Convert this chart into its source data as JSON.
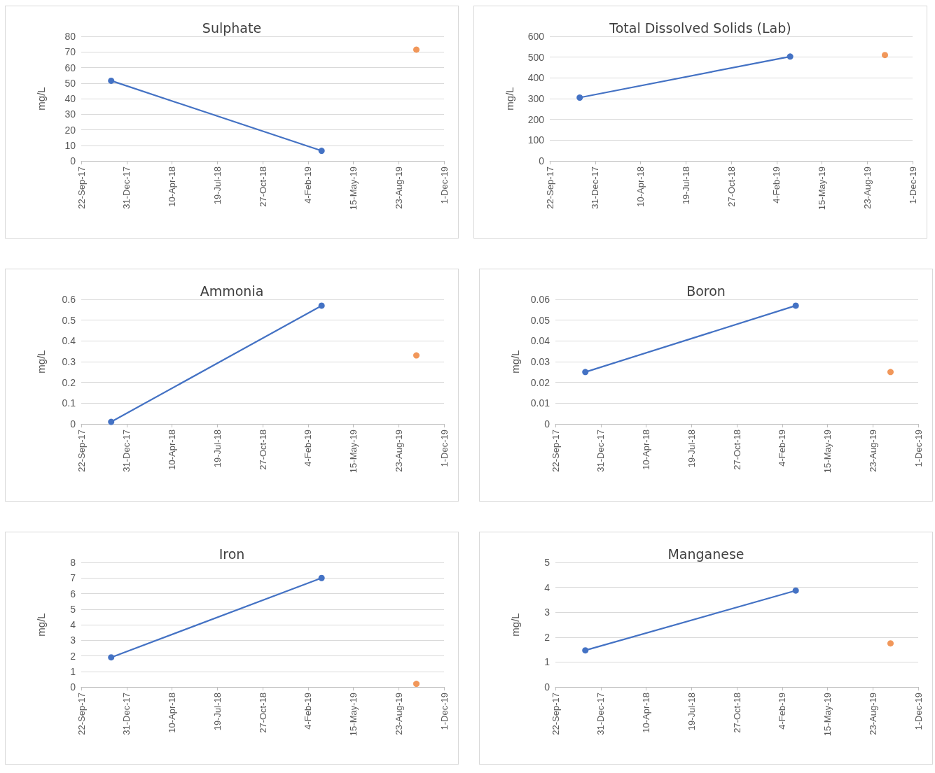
{
  "chart_data": [
    {
      "type": "line",
      "title": "Sulphate",
      "ylabel": "mg/L",
      "x": [
        "2017-11-27",
        "2019-03-06"
      ],
      "series": [
        {
          "type": "line",
          "color": "#4472c4",
          "values": [
            51.5,
            6.5
          ]
        },
        {
          "type": "scatter",
          "color": "#ed7d31",
          "x": [
            "2019-10-01"
          ],
          "values": [
            71.5
          ]
        }
      ],
      "xlim": [
        "2017-09-22",
        "2019-12-01"
      ],
      "xticks": [
        {
          "value": "2017-09-22",
          "label": "22-Sep-17"
        },
        {
          "value": "2017-12-31",
          "label": "31-Dec-17"
        },
        {
          "value": "2018-04-10",
          "label": "10-Apr-18"
        },
        {
          "value": "2018-07-19",
          "label": "19-Jul-18"
        },
        {
          "value": "2018-10-27",
          "label": "27-Oct-18"
        },
        {
          "value": "2019-02-04",
          "label": "4-Feb-19"
        },
        {
          "value": "2019-05-15",
          "label": "15-May-19"
        },
        {
          "value": "2019-08-23",
          "label": "23-Aug-19"
        },
        {
          "value": "2019-12-01",
          "label": "1-Dec-19"
        }
      ],
      "ylim": [
        0,
        80
      ],
      "yticks": [
        0,
        10,
        20,
        30,
        40,
        50,
        60,
        70,
        80
      ],
      "grid": "y",
      "marker": "circle",
      "line_style": "solid"
    },
    {
      "type": "line",
      "title": "Total Dissolved Solids (Lab)",
      "ylabel": "mg/L",
      "x": [
        "2017-11-27",
        "2019-03-06"
      ],
      "series": [
        {
          "type": "line",
          "color": "#4472c4",
          "values": [
            305,
            503
          ]
        },
        {
          "type": "scatter",
          "color": "#ed7d31",
          "x": [
            "2019-10-01"
          ],
          "values": [
            510
          ]
        }
      ],
      "xlim": [
        "2017-09-22",
        "2019-12-01"
      ],
      "xticks": [
        {
          "value": "2017-09-22",
          "label": "22-Sep-17"
        },
        {
          "value": "2017-12-31",
          "label": "31-Dec-17"
        },
        {
          "value": "2018-04-10",
          "label": "10-Apr-18"
        },
        {
          "value": "2018-07-19",
          "label": "19-Jul-18"
        },
        {
          "value": "2018-10-27",
          "label": "27-Oct-18"
        },
        {
          "value": "2019-02-04",
          "label": "4-Feb-19"
        },
        {
          "value": "2019-05-15",
          "label": "15-May-19"
        },
        {
          "value": "2019-08-23",
          "label": "23-Aug-19"
        },
        {
          "value": "2019-12-01",
          "label": "1-Dec-19"
        }
      ],
      "ylim": [
        0,
        600
      ],
      "yticks": [
        0,
        100,
        200,
        300,
        400,
        500,
        600
      ],
      "grid": "y",
      "marker": "circle",
      "line_style": "solid"
    },
    {
      "type": "line",
      "title": "Ammonia",
      "ylabel": "mg/L",
      "x": [
        "2017-11-27",
        "2019-03-06"
      ],
      "series": [
        {
          "type": "line",
          "color": "#4472c4",
          "values": [
            0.01,
            0.57
          ]
        },
        {
          "type": "scatter",
          "color": "#ed7d31",
          "x": [
            "2019-10-01"
          ],
          "values": [
            0.33
          ]
        }
      ],
      "xlim": [
        "2017-09-22",
        "2019-12-01"
      ],
      "xticks": [
        {
          "value": "2017-09-22",
          "label": "22-Sep-17"
        },
        {
          "value": "2017-12-31",
          "label": "31-Dec-17"
        },
        {
          "value": "2018-04-10",
          "label": "10-Apr-18"
        },
        {
          "value": "2018-07-19",
          "label": "19-Jul-18"
        },
        {
          "value": "2018-10-27",
          "label": "27-Oct-18"
        },
        {
          "value": "2019-02-04",
          "label": "4-Feb-19"
        },
        {
          "value": "2019-05-15",
          "label": "15-May-19"
        },
        {
          "value": "2019-08-23",
          "label": "23-Aug-19"
        },
        {
          "value": "2019-12-01",
          "label": "1-Dec-19"
        }
      ],
      "ylim": [
        0,
        0.6
      ],
      "yticks": [
        0,
        0.1,
        0.2,
        0.3,
        0.4,
        0.5,
        0.6
      ],
      "grid": "y",
      "marker": "circle",
      "line_style": "solid"
    },
    {
      "type": "line",
      "title": "Boron",
      "ylabel": "mg/L",
      "x": [
        "2017-11-27",
        "2019-03-06"
      ],
      "series": [
        {
          "type": "line",
          "color": "#4472c4",
          "values": [
            0.025,
            0.057
          ]
        },
        {
          "type": "scatter",
          "color": "#ed7d31",
          "x": [
            "2019-10-01"
          ],
          "values": [
            0.025
          ]
        }
      ],
      "xlim": [
        "2017-09-22",
        "2019-12-01"
      ],
      "xticks": [
        {
          "value": "2017-09-22",
          "label": "22-Sep-17"
        },
        {
          "value": "2017-12-31",
          "label": "31-Dec-17"
        },
        {
          "value": "2018-04-10",
          "label": "10-Apr-18"
        },
        {
          "value": "2018-07-19",
          "label": "19-Jul-18"
        },
        {
          "value": "2018-10-27",
          "label": "27-Oct-18"
        },
        {
          "value": "2019-02-04",
          "label": "4-Feb-19"
        },
        {
          "value": "2019-05-15",
          "label": "15-May-19"
        },
        {
          "value": "2019-08-23",
          "label": "23-Aug-19"
        },
        {
          "value": "2019-12-01",
          "label": "1-Dec-19"
        }
      ],
      "ylim": [
        0,
        0.06
      ],
      "yticks": [
        0,
        0.01,
        0.02,
        0.03,
        0.04,
        0.05,
        0.06
      ],
      "grid": "y",
      "marker": "circle",
      "line_style": "solid"
    },
    {
      "type": "line",
      "title": "Iron",
      "ylabel": "mg/L",
      "x": [
        "2017-11-27",
        "2019-03-06"
      ],
      "series": [
        {
          "type": "line",
          "color": "#4472c4",
          "values": [
            1.9,
            7.0
          ]
        },
        {
          "type": "scatter",
          "color": "#ed7d31",
          "x": [
            "2019-10-01"
          ],
          "values": [
            0.2
          ]
        }
      ],
      "xlim": [
        "2017-09-22",
        "2019-12-01"
      ],
      "xticks": [
        {
          "value": "2017-09-22",
          "label": "22-Sep-17"
        },
        {
          "value": "2017-12-31",
          "label": "31-Dec-17"
        },
        {
          "value": "2018-04-10",
          "label": "10-Apr-18"
        },
        {
          "value": "2018-07-19",
          "label": "19-Jul-18"
        },
        {
          "value": "2018-10-27",
          "label": "27-Oct-18"
        },
        {
          "value": "2019-02-04",
          "label": "4-Feb-19"
        },
        {
          "value": "2019-05-15",
          "label": "15-May-19"
        },
        {
          "value": "2019-08-23",
          "label": "23-Aug-19"
        },
        {
          "value": "2019-12-01",
          "label": "1-Dec-19"
        }
      ],
      "ylim": [
        0,
        8
      ],
      "yticks": [
        0,
        1,
        2,
        3,
        4,
        5,
        6,
        7,
        8
      ],
      "grid": "y",
      "marker": "circle",
      "line_style": "solid"
    },
    {
      "type": "line",
      "title": "Manganese",
      "ylabel": "mg/L",
      "x": [
        "2017-11-27",
        "2019-03-06"
      ],
      "series": [
        {
          "type": "line",
          "color": "#4472c4",
          "values": [
            1.47,
            3.87
          ]
        },
        {
          "type": "scatter",
          "color": "#ed7d31",
          "x": [
            "2019-10-01"
          ],
          "values": [
            1.75
          ]
        }
      ],
      "xlim": [
        "2017-09-22",
        "2019-12-01"
      ],
      "xticks": [
        {
          "value": "2017-09-22",
          "label": "22-Sep-17"
        },
        {
          "value": "2017-12-31",
          "label": "31-Dec-17"
        },
        {
          "value": "2018-04-10",
          "label": "10-Apr-18"
        },
        {
          "value": "2018-07-19",
          "label": "19-Jul-18"
        },
        {
          "value": "2018-10-27",
          "label": "27-Oct-18"
        },
        {
          "value": "2019-02-04",
          "label": "4-Feb-19"
        },
        {
          "value": "2019-05-15",
          "label": "15-May-19"
        },
        {
          "value": "2019-08-23",
          "label": "23-Aug-19"
        },
        {
          "value": "2019-12-01",
          "label": "1-Dec-19"
        }
      ],
      "ylim": [
        0,
        5
      ],
      "yticks": [
        0,
        1,
        2,
        3,
        4,
        5
      ],
      "grid": "y",
      "marker": "circle",
      "line_style": "solid"
    }
  ]
}
